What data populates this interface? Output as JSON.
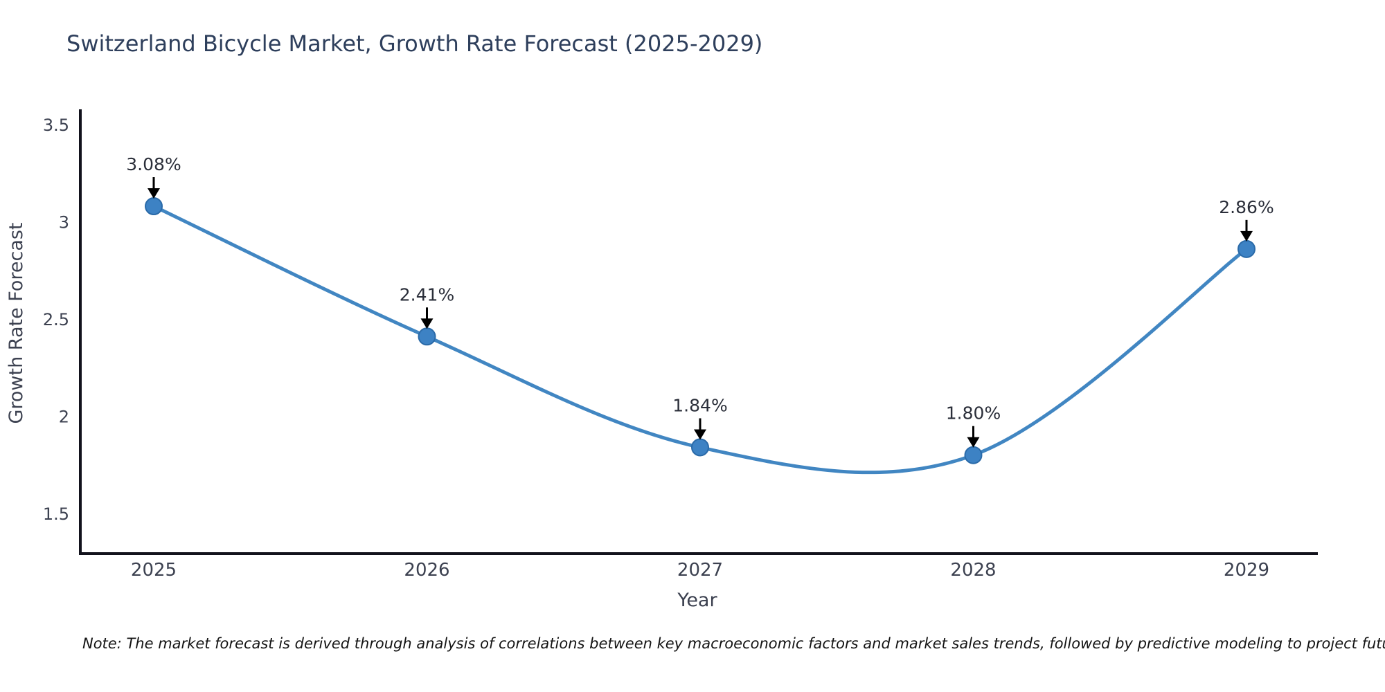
{
  "title": "Switzerland Bicycle Market, Growth Rate Forecast (2025-2029)",
  "note": "Note: The market forecast is derived through analysis of correlations between key macroeconomic factors and market sales trends, followed by predictive modeling to project future sales",
  "chart_data": {
    "type": "line",
    "title": "Switzerland Bicycle Market, Growth Rate Forecast (2025-2029)",
    "x": [
      2025,
      2026,
      2027,
      2028,
      2029
    ],
    "categories": [
      "2025",
      "2026",
      "2027",
      "2028",
      "2029"
    ],
    "series": [
      {
        "name": "Growth Rate Forecast",
        "values": [
          3.08,
          2.41,
          1.84,
          1.8,
          2.86
        ],
        "point_labels": [
          "3.08%",
          "2.41%",
          "1.84%",
          "1.80%",
          "2.86%"
        ]
      }
    ],
    "xlabel": "Year",
    "ylabel": "Growth Rate Forecast",
    "yticks": [
      1.5,
      2,
      2.5,
      3,
      3.5
    ],
    "ytick_labels": [
      "1.5",
      "2",
      "2.5",
      "3",
      "3.5"
    ],
    "ylim": [
      1.29,
      3.58
    ],
    "grid": false,
    "legend": false,
    "line_style": "smooth-spline",
    "marker": "circle",
    "annotations": "value labels with downward black arrows above each point"
  },
  "colors": {
    "line": "#4186c2",
    "marker_fill": "#3d82c4",
    "marker_edge": "#2a6aa8",
    "axis": "#12121c",
    "tick_label": "#3c4150",
    "data_label": "#2a2e39",
    "arrow": "#000000",
    "title": "#2e3f5c",
    "note": "#141414",
    "background": "#ffffff"
  }
}
